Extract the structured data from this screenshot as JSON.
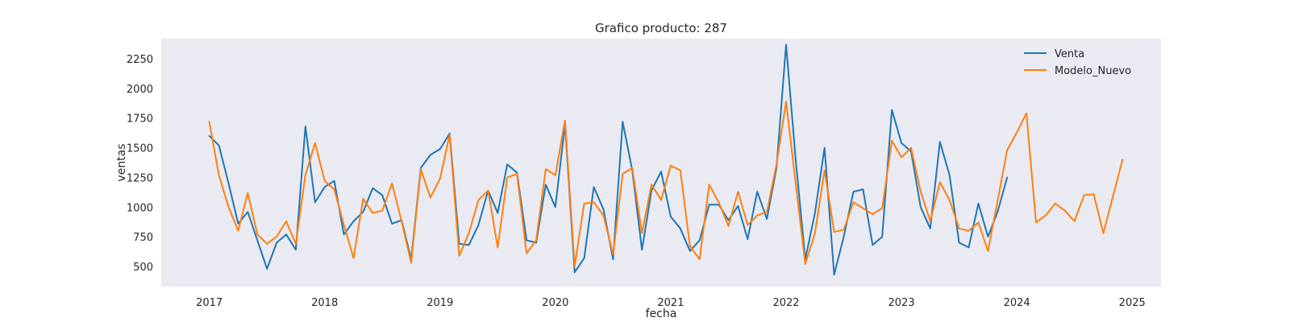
{
  "chart_data": {
    "type": "line",
    "title": "Grafico producto: 287",
    "xlabel": "fecha",
    "ylabel": "ventas",
    "x_ticks": [
      "2017",
      "2018",
      "2019",
      "2020",
      "2021",
      "2022",
      "2023",
      "2024",
      "2025"
    ],
    "y_ticks": [
      500,
      750,
      1000,
      1250,
      1500,
      1750,
      2000,
      2250
    ],
    "xlim": [
      "2016-08",
      "2025-04"
    ],
    "ylim": [
      330,
      2420
    ],
    "grid": false,
    "legend_position": "top-right",
    "background_color": "#eaeaf2",
    "series": [
      {
        "name": "Venta",
        "color": "#1f77b4",
        "start": "2017-01",
        "values": [
          1600,
          1520,
          1200,
          860,
          960,
          720,
          480,
          700,
          770,
          640,
          1680,
          1040,
          1170,
          1220,
          770,
          880,
          960,
          1160,
          1100,
          860,
          890,
          560,
          1330,
          1440,
          1490,
          1620,
          690,
          680,
          850,
          1140,
          950,
          1360,
          1290,
          720,
          700,
          1190,
          1000,
          1700,
          450,
          570,
          1170,
          980,
          560,
          1720,
          1310,
          640,
          1140,
          1300,
          920,
          820,
          630,
          720,
          1020,
          1020,
          890,
          1010,
          730,
          1130,
          900,
          1330,
          2370,
          1400,
          560,
          950,
          1500,
          430,
          750,
          1130,
          1150,
          680,
          750,
          1820,
          1540,
          1470,
          1000,
          820,
          1550,
          1270,
          700,
          660,
          1030,
          750,
          960,
          1250
        ]
      },
      {
        "name": "Modelo_Nuevo",
        "color": "#ff7f0e",
        "start": "2017-01",
        "values": [
          1720,
          1270,
          1000,
          800,
          1120,
          770,
          690,
          750,
          880,
          690,
          1270,
          1540,
          1220,
          1150,
          850,
          570,
          1070,
          950,
          970,
          1200,
          880,
          530,
          1320,
          1080,
          1240,
          1610,
          590,
          780,
          1060,
          1140,
          660,
          1250,
          1280,
          610,
          720,
          1320,
          1270,
          1730,
          500,
          1030,
          1040,
          930,
          600,
          1280,
          1330,
          780,
          1190,
          1060,
          1350,
          1310,
          670,
          560,
          1190,
          1040,
          840,
          1130,
          850,
          930,
          960,
          1360,
          1890,
          1200,
          520,
          780,
          1310,
          790,
          810,
          1040,
          990,
          940,
          990,
          1560,
          1420,
          1500,
          1130,
          880,
          1210,
          1060,
          820,
          800,
          870,
          630,
          1050,
          1480,
          1630,
          1790,
          870,
          930,
          1030,
          970,
          880,
          1100,
          1110,
          780,
          1090,
          1400
        ]
      }
    ]
  }
}
